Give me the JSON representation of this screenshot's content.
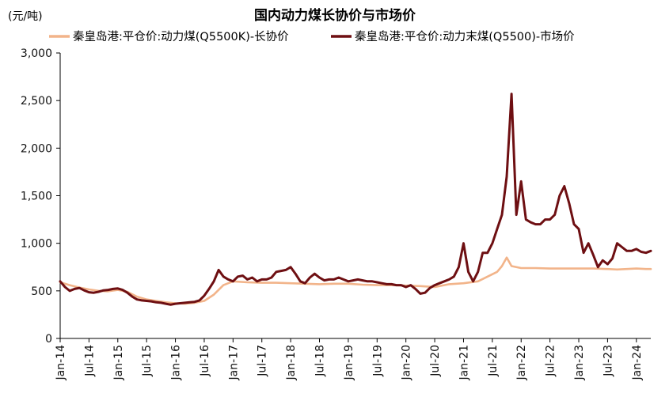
{
  "chart_data": {
    "type": "line",
    "title": "国内动力煤长协价与市场价",
    "y_unit_label": "(元/吨)",
    "ylim": [
      0,
      3000
    ],
    "y_ticks": [
      0,
      500,
      1000,
      1500,
      2000,
      2500,
      3000
    ],
    "y_tick_labels": [
      "0",
      "500",
      "1,000",
      "1,500",
      "2,000",
      "2,500",
      "3,000"
    ],
    "x_tick_labels": [
      "Jan-14",
      "Jul-14",
      "Jan-15",
      "Jul-15",
      "Jan-16",
      "Jul-16",
      "Jan-17",
      "Jul-17",
      "Jan-18",
      "Jul-18",
      "Jan-19",
      "Jul-19",
      "Jan-20",
      "Jul-20",
      "Jan-21",
      "Jul-21",
      "Jan-22",
      "Jul-22",
      "Jan-23",
      "Jul-23",
      "Jan-24"
    ],
    "xlim": [
      "2014-01",
      "2024-04"
    ],
    "grid": false,
    "legend_position": "top",
    "series": [
      {
        "name": "秦皇岛港:平仓价:动力煤(Q5500K)-长协价",
        "color": "#F2B48A",
        "x": [
          "2014-01",
          "2014-03",
          "2014-05",
          "2014-07",
          "2014-09",
          "2014-11",
          "2015-01",
          "2015-03",
          "2015-05",
          "2015-07",
          "2015-09",
          "2015-11",
          "2016-01",
          "2016-03",
          "2016-05",
          "2016-07",
          "2016-09",
          "2016-11",
          "2017-01",
          "2017-04",
          "2017-07",
          "2017-10",
          "2018-01",
          "2018-04",
          "2018-07",
          "2018-10",
          "2019-01",
          "2019-04",
          "2019-07",
          "2019-10",
          "2020-01",
          "2020-04",
          "2020-07",
          "2020-10",
          "2021-01",
          "2021-04",
          "2021-06",
          "2021-08",
          "2021-09",
          "2021-10",
          "2021-11",
          "2022-01",
          "2022-04",
          "2022-07",
          "2022-10",
          "2023-01",
          "2023-04",
          "2023-07",
          "2023-09",
          "2023-11",
          "2024-01",
          "2024-03",
          "2024-04"
        ],
        "values": [
          590,
          560,
          535,
          515,
          500,
          495,
          510,
          490,
          440,
          410,
          395,
          380,
          370,
          365,
          375,
          395,
          460,
          560,
          600,
          590,
          585,
          585,
          580,
          575,
          570,
          575,
          575,
          565,
          560,
          560,
          555,
          550,
          540,
          570,
          580,
          600,
          650,
          700,
          760,
          850,
          760,
          740,
          740,
          735,
          735,
          735,
          735,
          730,
          725,
          730,
          735,
          730,
          730
        ]
      },
      {
        "name": "秦皇岛港:平仓价:动力末煤(Q5500)-市场价",
        "color": "#6E0F12",
        "x": [
          "2014-01",
          "2014-02",
          "2014-03",
          "2014-04",
          "2014-05",
          "2014-06",
          "2014-07",
          "2014-08",
          "2014-09",
          "2014-10",
          "2014-11",
          "2014-12",
          "2015-01",
          "2015-02",
          "2015-03",
          "2015-04",
          "2015-05",
          "2015-06",
          "2015-07",
          "2015-08",
          "2015-09",
          "2015-10",
          "2015-11",
          "2015-12",
          "2016-01",
          "2016-02",
          "2016-03",
          "2016-04",
          "2016-05",
          "2016-06",
          "2016-07",
          "2016-08",
          "2016-09",
          "2016-10",
          "2016-11",
          "2016-12",
          "2017-01",
          "2017-02",
          "2017-03",
          "2017-04",
          "2017-05",
          "2017-06",
          "2017-07",
          "2017-08",
          "2017-09",
          "2017-10",
          "2017-11",
          "2017-12",
          "2018-01",
          "2018-02",
          "2018-03",
          "2018-04",
          "2018-05",
          "2018-06",
          "2018-07",
          "2018-08",
          "2018-09",
          "2018-10",
          "2018-11",
          "2018-12",
          "2019-01",
          "2019-02",
          "2019-03",
          "2019-04",
          "2019-05",
          "2019-06",
          "2019-07",
          "2019-08",
          "2019-09",
          "2019-10",
          "2019-11",
          "2019-12",
          "2020-01",
          "2020-02",
          "2020-03",
          "2020-04",
          "2020-05",
          "2020-06",
          "2020-07",
          "2020-08",
          "2020-09",
          "2020-10",
          "2020-11",
          "2020-12",
          "2021-01",
          "2021-02",
          "2021-03",
          "2021-04",
          "2021-05",
          "2021-06",
          "2021-07",
          "2021-08",
          "2021-09",
          "2021-10",
          "2021-11",
          "2021-12",
          "2022-01",
          "2022-02",
          "2022-03",
          "2022-04",
          "2022-05",
          "2022-06",
          "2022-07",
          "2022-08",
          "2022-09",
          "2022-10",
          "2022-11",
          "2022-12",
          "2023-01",
          "2023-02",
          "2023-03",
          "2023-04",
          "2023-05",
          "2023-06",
          "2023-07",
          "2023-08",
          "2023-09",
          "2023-10",
          "2023-11",
          "2023-12",
          "2024-01",
          "2024-02",
          "2024-03",
          "2024-04"
        ],
        "values": [
          600,
          540,
          500,
          520,
          530,
          505,
          485,
          480,
          490,
          505,
          510,
          520,
          525,
          510,
          480,
          440,
          410,
          400,
          395,
          390,
          380,
          375,
          365,
          355,
          365,
          370,
          375,
          380,
          385,
          400,
          450,
          520,
          600,
          720,
          650,
          620,
          600,
          650,
          660,
          620,
          640,
          600,
          620,
          620,
          640,
          700,
          710,
          720,
          750,
          680,
          600,
          580,
          640,
          680,
          640,
          610,
          620,
          620,
          640,
          620,
          600,
          610,
          620,
          610,
          600,
          600,
          590,
          580,
          570,
          570,
          560,
          560,
          540,
          560,
          520,
          470,
          480,
          530,
          560,
          580,
          600,
          620,
          650,
          750,
          1000,
          700,
          600,
          700,
          900,
          900,
          1000,
          1150,
          1300,
          1700,
          2570,
          1300,
          1650,
          1250,
          1220,
          1200,
          1200,
          1250,
          1250,
          1300,
          1500,
          1600,
          1420,
          1200,
          1150,
          900,
          1000,
          880,
          750,
          820,
          780,
          840,
          1000,
          960,
          920,
          920,
          940,
          910,
          900,
          920
        ]
      }
    ]
  }
}
